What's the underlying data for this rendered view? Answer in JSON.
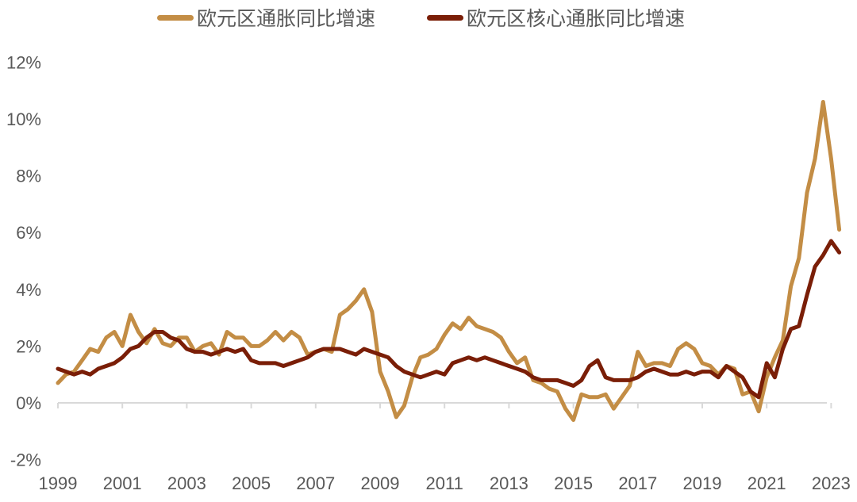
{
  "legend": {
    "series1": {
      "label": "欧元区通胀同比增速",
      "color": "#C38D45"
    },
    "series2": {
      "label": "欧元区核心通胀同比增速",
      "color": "#7A1E07"
    }
  },
  "axis_color": "#D9D9D9",
  "chart_data": {
    "type": "line",
    "title": "",
    "xlabel": "",
    "ylabel": "",
    "ylim": [
      -2,
      12
    ],
    "xlim": [
      1999,
      2023.25
    ],
    "yticks": [
      "-2%",
      "0%",
      "2%",
      "4%",
      "6%",
      "8%",
      "10%",
      "12%"
    ],
    "ytick_values": [
      -2,
      0,
      2,
      4,
      6,
      8,
      10,
      12
    ],
    "xticks": [
      "1999",
      "2001",
      "2003",
      "2005",
      "2007",
      "2009",
      "2011",
      "2013",
      "2015",
      "2017",
      "2019",
      "2021",
      "2023"
    ],
    "grid": false,
    "legend_position": "top",
    "x": [
      1999.0,
      1999.25,
      1999.5,
      1999.75,
      2000.0,
      2000.25,
      2000.5,
      2000.75,
      2001.0,
      2001.25,
      2001.5,
      2001.75,
      2002.0,
      2002.25,
      2002.5,
      2002.75,
      2003.0,
      2003.25,
      2003.5,
      2003.75,
      2004.0,
      2004.25,
      2004.5,
      2004.75,
      2005.0,
      2005.25,
      2005.5,
      2005.75,
      2006.0,
      2006.25,
      2006.5,
      2006.75,
      2007.0,
      2007.25,
      2007.5,
      2007.75,
      2008.0,
      2008.25,
      2008.5,
      2008.75,
      2009.0,
      2009.25,
      2009.5,
      2009.75,
      2010.0,
      2010.25,
      2010.5,
      2010.75,
      2011.0,
      2011.25,
      2011.5,
      2011.75,
      2012.0,
      2012.25,
      2012.5,
      2012.75,
      2013.0,
      2013.25,
      2013.5,
      2013.75,
      2014.0,
      2014.25,
      2014.5,
      2014.75,
      2015.0,
      2015.25,
      2015.5,
      2015.75,
      2016.0,
      2016.25,
      2016.5,
      2016.75,
      2017.0,
      2017.25,
      2017.5,
      2017.75,
      2018.0,
      2018.25,
      2018.5,
      2018.75,
      2019.0,
      2019.25,
      2019.5,
      2019.75,
      2020.0,
      2020.25,
      2020.5,
      2020.75,
      2021.0,
      2021.25,
      2021.5,
      2021.75,
      2022.0,
      2022.25,
      2022.5,
      2022.75,
      2023.0,
      2023.25
    ],
    "series": [
      {
        "name": "欧元区通胀同比增速",
        "color": "#C38D45",
        "values": [
          0.7,
          1.0,
          1.1,
          1.5,
          1.9,
          1.8,
          2.3,
          2.5,
          2.0,
          3.1,
          2.5,
          2.1,
          2.6,
          2.1,
          2.0,
          2.3,
          2.3,
          1.8,
          2.0,
          2.1,
          1.7,
          2.5,
          2.3,
          2.3,
          2.0,
          2.0,
          2.2,
          2.5,
          2.2,
          2.5,
          2.3,
          1.7,
          1.8,
          1.9,
          1.8,
          3.1,
          3.3,
          3.6,
          4.0,
          3.2,
          1.1,
          0.4,
          -0.5,
          -0.1,
          0.9,
          1.6,
          1.7,
          1.9,
          2.4,
          2.8,
          2.6,
          3.0,
          2.7,
          2.6,
          2.5,
          2.3,
          1.8,
          1.4,
          1.6,
          0.8,
          0.7,
          0.5,
          0.4,
          -0.2,
          -0.6,
          0.3,
          0.2,
          0.2,
          0.3,
          -0.2,
          0.2,
          0.6,
          1.8,
          1.3,
          1.4,
          1.4,
          1.3,
          1.9,
          2.1,
          1.9,
          1.4,
          1.3,
          1.0,
          1.3,
          1.2,
          0.3,
          0.4,
          -0.3,
          0.9,
          1.6,
          2.2,
          4.1,
          5.1,
          7.4,
          8.6,
          10.6,
          8.6,
          6.1
        ]
      },
      {
        "name": "欧元区核心通胀同比增速",
        "color": "#7A1E07",
        "values": [
          1.2,
          1.1,
          1.0,
          1.1,
          1.0,
          1.2,
          1.3,
          1.4,
          1.6,
          1.9,
          2.0,
          2.3,
          2.5,
          2.5,
          2.3,
          2.2,
          1.9,
          1.8,
          1.8,
          1.7,
          1.8,
          1.9,
          1.8,
          1.9,
          1.5,
          1.4,
          1.4,
          1.4,
          1.3,
          1.4,
          1.5,
          1.6,
          1.8,
          1.9,
          1.9,
          1.9,
          1.8,
          1.7,
          1.9,
          1.8,
          1.7,
          1.6,
          1.3,
          1.1,
          1.0,
          0.9,
          1.0,
          1.1,
          1.0,
          1.4,
          1.5,
          1.6,
          1.5,
          1.6,
          1.5,
          1.4,
          1.3,
          1.2,
          1.1,
          0.9,
          0.8,
          0.8,
          0.8,
          0.7,
          0.6,
          0.8,
          1.3,
          1.5,
          0.9,
          0.8,
          0.8,
          0.8,
          0.9,
          1.1,
          1.2,
          1.1,
          1.0,
          1.0,
          1.1,
          1.0,
          1.1,
          1.1,
          0.9,
          1.3,
          1.1,
          0.9,
          0.4,
          0.2,
          1.4,
          0.9,
          1.9,
          2.6,
          2.7,
          3.8,
          4.8,
          5.2,
          5.7,
          5.3
        ]
      }
    ]
  }
}
